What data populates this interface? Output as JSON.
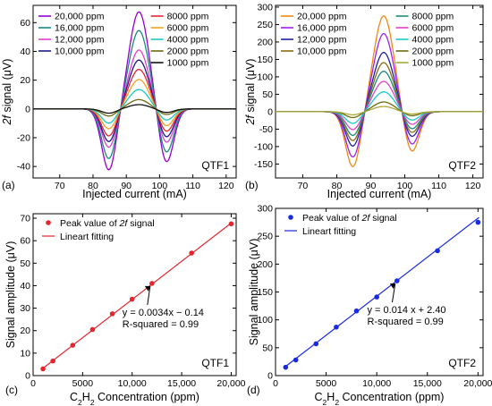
{
  "chart_data": [
    {
      "panel": "(a)",
      "type": "line",
      "tag": "QTF1",
      "xlabel": "Injected current (mA)",
      "ylabel": "2f signal (μV)",
      "xlim": [
        62,
        123
      ],
      "ylim": [
        -48,
        72
      ],
      "xticks": [
        70,
        80,
        90,
        100,
        110,
        120
      ],
      "yticks": [
        -40,
        -20,
        0,
        20,
        40,
        60
      ],
      "legend_left": [
        "20,000 ppm",
        "16,000 ppm",
        "12,000 ppm",
        "10,000 ppm"
      ],
      "legend_right": [
        "8000 ppm",
        "6000 ppm",
        "4000 ppm",
        "2000 ppm",
        "1000 ppm"
      ],
      "series": [
        {
          "name": "20,000 ppm",
          "color": "#9400d3",
          "peak": 67.5,
          "v1": -43,
          "v2": -38
        },
        {
          "name": "16,000 ppm",
          "color": "#1a8a7e",
          "peak": 54.5,
          "v1": -35,
          "v2": -31
        },
        {
          "name": "12,000 ppm",
          "color": "#e040c8",
          "peak": 41.0,
          "v1": -27,
          "v2": -24
        },
        {
          "name": "10,000 ppm",
          "color": "#1b1b8c",
          "peak": 34.0,
          "v1": -23,
          "v2": -20
        },
        {
          "name": "8000 ppm",
          "color": "#e3262e",
          "peak": 27.5,
          "v1": -19,
          "v2": -16
        },
        {
          "name": "6000 ppm",
          "color": "#f0a020",
          "peak": 20.5,
          "v1": -14,
          "v2": -12
        },
        {
          "name": "4000 ppm",
          "color": "#17c9c9",
          "peak": 13.5,
          "v1": -10,
          "v2": -8
        },
        {
          "name": "2000 ppm",
          "color": "#6b6b10",
          "peak": 6.5,
          "v1": -5,
          "v2": -4
        },
        {
          "name": "1000 ppm",
          "color": "#111111",
          "peak": 3.0,
          "v1": -3,
          "v2": -2.5
        }
      ]
    },
    {
      "panel": "(b)",
      "type": "line",
      "tag": "QTF2",
      "xlabel": "Injected current (mA)",
      "ylabel": "2f signal (μV)",
      "xlim": [
        62,
        123
      ],
      "ylim": [
        -190,
        305
      ],
      "xticks": [
        70,
        80,
        90,
        100,
        110,
        120
      ],
      "yticks": [
        -150,
        -100,
        -50,
        0,
        50,
        100,
        150,
        200,
        250,
        300
      ],
      "legend_left": [
        "20,000 ppm",
        "16,000 ppm",
        "12,000 ppm",
        "10,000 ppm"
      ],
      "legend_right": [
        "8000 ppm",
        "6000 ppm",
        "4000 ppm",
        "2000 ppm",
        "1000 ppm"
      ],
      "series": [
        {
          "name": "20,000 ppm",
          "color": "#f08a10",
          "peak": 275,
          "v1": -160,
          "v2": -118
        },
        {
          "name": "16,000 ppm",
          "color": "#a020f0",
          "peak": 224,
          "v1": -132,
          "v2": -97
        },
        {
          "name": "12,000 ppm",
          "color": "#2020a0",
          "peak": 170,
          "v1": -100,
          "v2": -74
        },
        {
          "name": "10,000 ppm",
          "color": "#8a6a10",
          "peak": 141,
          "v1": -84,
          "v2": -62
        },
        {
          "name": "8000 ppm",
          "color": "#1a8a7e",
          "peak": 116,
          "v1": -69,
          "v2": -51
        },
        {
          "name": "6000 ppm",
          "color": "#e040c8",
          "peak": 87,
          "v1": -52,
          "v2": -38
        },
        {
          "name": "4000 ppm",
          "color": "#17c9c9",
          "peak": 57,
          "v1": -34,
          "v2": -25
        },
        {
          "name": "2000 ppm",
          "color": "#6b6b10",
          "peak": 28,
          "v1": -17,
          "v2": -12
        },
        {
          "name": "1000 ppm",
          "color": "#a8a838",
          "peak": 15,
          "v1": -9,
          "v2": -7
        }
      ]
    },
    {
      "panel": "(c)",
      "type": "scatter",
      "tag": "QTF1",
      "color": "#e3262e",
      "xlabel": "C2H2 Concentration (ppm)",
      "ylabel": "Signal amplitude (μV)",
      "xlim": [
        0,
        20500
      ],
      "ylim": [
        0,
        72
      ],
      "xticks": [
        0,
        5000,
        10000,
        15000,
        20000
      ],
      "xticklabels": [
        "0",
        "5000",
        "10,000",
        "15,000",
        "20,000"
      ],
      "yticks": [
        0,
        10,
        20,
        30,
        40,
        50,
        60,
        70
      ],
      "legend": [
        "Peak value of 2f signal",
        "Lineart fitting"
      ],
      "x": [
        1000,
        2000,
        4000,
        6000,
        8000,
        10000,
        12000,
        16000,
        20000
      ],
      "y": [
        3.0,
        6.5,
        13.5,
        20.5,
        27.5,
        34.0,
        41.0,
        54.5,
        67.5
      ],
      "fit": {
        "slope": 0.0034,
        "intercept": -0.14
      },
      "annotation": [
        "y = 0.0034x − 0.14",
        "R-squared = 0.99"
      ]
    },
    {
      "panel": "(d)",
      "type": "scatter",
      "tag": "QTF2",
      "color": "#1a2ae0",
      "xlabel": "C2H2 Concentration (ppm)",
      "ylabel": "Signal amplitude (μV)",
      "xlim": [
        0,
        20500
      ],
      "ylim": [
        0,
        300
      ],
      "xticks": [
        0,
        5000,
        10000,
        15000,
        20000
      ],
      "xticklabels": [
        "0",
        "5000",
        "10,000",
        "15,000",
        "20,000"
      ],
      "yticks": [
        0,
        50,
        100,
        150,
        200,
        250,
        300
      ],
      "legend": [
        "Peak value of 2f signal",
        "Lineart fitting"
      ],
      "x": [
        1000,
        2000,
        4000,
        6000,
        8000,
        10000,
        12000,
        16000,
        20000
      ],
      "y": [
        15,
        28,
        57,
        87,
        116,
        141,
        170,
        224,
        275
      ],
      "fit": {
        "slope": 0.014,
        "intercept": 2.4
      },
      "annotation": [
        "y = 0.014 x + 2.40",
        "R-squared = 0.99"
      ]
    }
  ]
}
